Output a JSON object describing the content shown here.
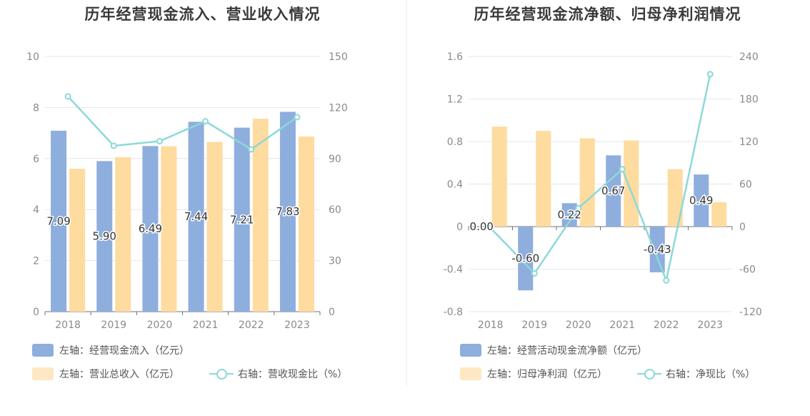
{
  "chart_data": [
    {
      "type": "bar",
      "title": "历年经营现金流入、营业收入情况",
      "categories": [
        "2018",
        "2019",
        "2020",
        "2021",
        "2022",
        "2023"
      ],
      "series": [
        {
          "name": "左轴：经营现金流入（亿元）",
          "axis": "left",
          "kind": "bar",
          "color": "#8eaedd",
          "values": [
            7.09,
            5.9,
            6.49,
            7.44,
            7.21,
            7.83
          ],
          "labels": [
            "7.09",
            "5.90",
            "6.49",
            "7.44",
            "7.21",
            "7.83"
          ]
        },
        {
          "name": "左轴：营业总收入（亿元）",
          "axis": "left",
          "kind": "bar",
          "color": "#fedb9f",
          "values": [
            5.6,
            6.05,
            6.48,
            6.65,
            7.56,
            6.86
          ]
        },
        {
          "name": "右轴：营收现金比（%）",
          "axis": "right",
          "kind": "line",
          "color": "#8dd8d8",
          "values": [
            126.5,
            97.5,
            100.2,
            111.9,
            95.4,
            114.3
          ]
        }
      ],
      "ylim_left": [
        0,
        10
      ],
      "yticks_left": [
        "0",
        "2",
        "4",
        "6",
        "8",
        "10"
      ],
      "ylim_right": [
        0,
        150
      ],
      "yticks_right": [
        "0",
        "30",
        "60",
        "90",
        "120",
        "150"
      ],
      "grid": true,
      "legend_position": "bottom"
    },
    {
      "type": "bar",
      "title": "历年经营现金流净额、归母净利润情况",
      "categories": [
        "2018",
        "2019",
        "2020",
        "2021",
        "2022",
        "2023"
      ],
      "series": [
        {
          "name": "左轴：经营活动现金流净额（亿元）",
          "axis": "left",
          "kind": "bar",
          "color": "#8eaedd",
          "values": [
            0.0,
            -0.6,
            0.22,
            0.67,
            -0.43,
            0.49
          ],
          "labels": [
            "0.00",
            "-0.60",
            "0.22",
            "0.67",
            "-0.43",
            "0.49"
          ]
        },
        {
          "name": "左轴：归母净利润（亿元）",
          "axis": "left",
          "kind": "bar",
          "color": "#fedb9f",
          "values": [
            0.94,
            0.9,
            0.83,
            0.81,
            0.54,
            0.23
          ]
        },
        {
          "name": "右轴：净现比（%）",
          "axis": "right",
          "kind": "line",
          "color": "#8dd8d8",
          "values": [
            -2,
            -66,
            26,
            81,
            -76,
            215
          ]
        }
      ],
      "ylim_left": [
        -0.8,
        1.6
      ],
      "yticks_left": [
        "-0.8",
        "-0.4",
        "0",
        "0.4",
        "0.8",
        "1.2",
        "1.6"
      ],
      "ylim_right": [
        -120,
        240
      ],
      "yticks_right": [
        "-120",
        "-60",
        "0",
        "60",
        "120",
        "180",
        "240"
      ],
      "grid": true,
      "legend_position": "bottom"
    }
  ]
}
